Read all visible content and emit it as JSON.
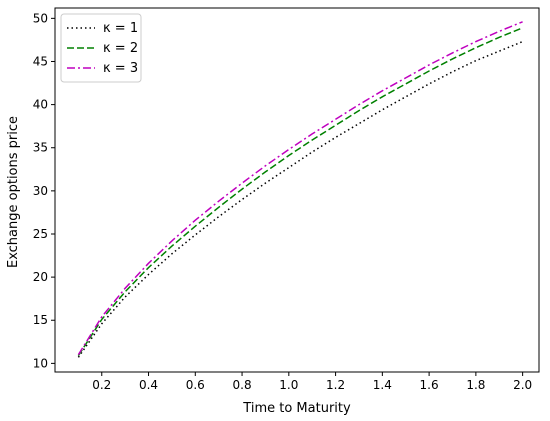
{
  "chart_data": {
    "type": "line",
    "title": "",
    "xlabel": "Time to Maturity",
    "ylabel": "Exchange options price",
    "xlim": [
      0.0,
      2.07
    ],
    "ylim": [
      9.0,
      51.2
    ],
    "xticks": [
      "0.2",
      "0.4",
      "0.6",
      "0.8",
      "1.0",
      "1.2",
      "1.4",
      "1.6",
      "1.8",
      "2.0"
    ],
    "yticks": [
      "10",
      "15",
      "20",
      "25",
      "30",
      "35",
      "40",
      "45",
      "50"
    ],
    "grid": false,
    "legend_position": "top-left",
    "x": [
      0.1,
      0.2,
      0.3,
      0.4,
      0.5,
      0.6,
      0.7,
      0.8,
      0.9,
      1.0,
      1.1,
      1.2,
      1.3,
      1.4,
      1.5,
      1.6,
      1.7,
      1.8,
      1.9,
      2.0
    ],
    "series": [
      {
        "name": "κ = 1",
        "color": "#000000",
        "style": "dotted",
        "values": [
          10.7,
          14.6,
          17.7,
          20.3,
          22.7,
          24.9,
          27.0,
          29.0,
          30.9,
          32.7,
          34.5,
          36.2,
          37.8,
          39.4,
          40.9,
          42.4,
          43.8,
          45.1,
          46.2,
          47.3
        ]
      },
      {
        "name": "κ = 2",
        "color": "#008000",
        "style": "dashed",
        "values": [
          10.9,
          15.1,
          18.3,
          21.1,
          23.6,
          25.9,
          28.1,
          30.2,
          32.2,
          34.1,
          35.9,
          37.6,
          39.3,
          40.9,
          42.4,
          43.9,
          45.3,
          46.6,
          47.8,
          48.9
        ]
      },
      {
        "name": "κ = 3",
        "color": "#bf00bf",
        "style": "dashdot",
        "values": [
          11.0,
          15.4,
          18.7,
          21.6,
          24.2,
          26.6,
          28.8,
          30.9,
          32.9,
          34.8,
          36.6,
          38.3,
          40.0,
          41.6,
          43.1,
          44.6,
          46.0,
          47.3,
          48.5,
          49.6
        ]
      }
    ]
  }
}
